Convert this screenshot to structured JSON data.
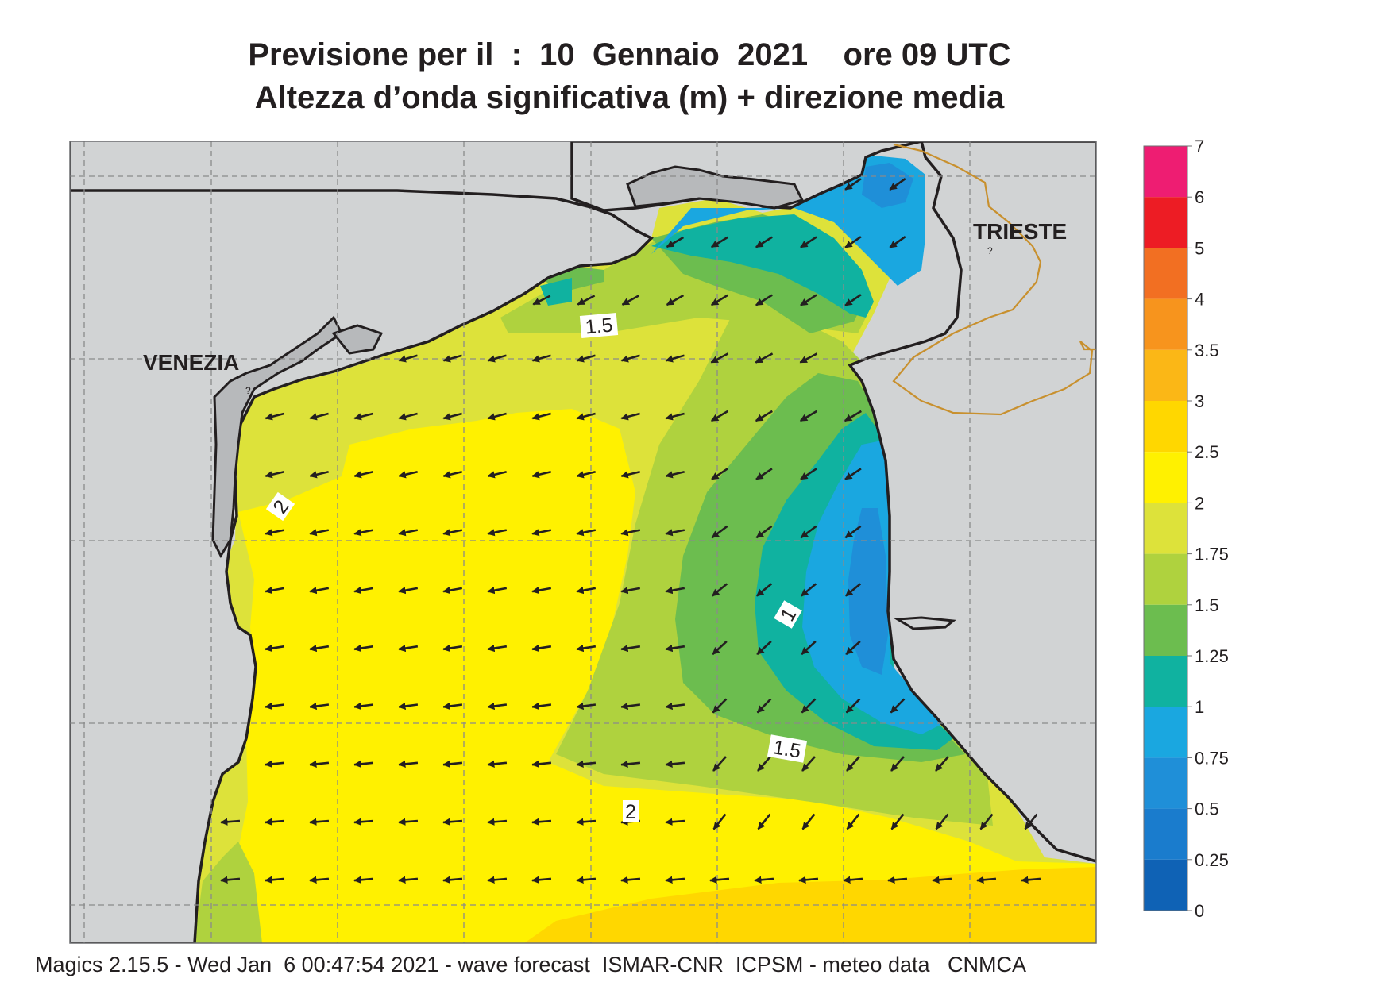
{
  "header": {
    "title_line1": "Previsione per il  :  10  Gennaio  2021    ore 09 UTC",
    "title_line2": "Altezza d’onda significativa (m) + direzione media"
  },
  "map": {
    "cities": [
      {
        "name": "VENEZIA"
      },
      {
        "name": "TRIESTE"
      }
    ],
    "contour_labels": [
      "1.5",
      "2",
      "1",
      "1.5",
      "2"
    ],
    "wave_direction": "towards south-west / west-south-west",
    "colors": {
      "land": "#d1d3d4",
      "lagoon": "#b7b9bb",
      "coast": "#231f20",
      "border": "#c8902e",
      "grid": "#8a8a8a"
    }
  },
  "colorbar": {
    "ticks": [
      "7",
      "6",
      "5",
      "4",
      "3.5",
      "3",
      "2.5",
      "2",
      "1.75",
      "1.5",
      "1.25",
      "1",
      "0.75",
      "0.5",
      "0.25",
      "0"
    ],
    "bands": [
      {
        "from": 6,
        "to": 7,
        "color": "#ee1d72"
      },
      {
        "from": 5,
        "to": 6,
        "color": "#ed1c24"
      },
      {
        "from": 4,
        "to": 5,
        "color": "#f26f22"
      },
      {
        "from": 3.5,
        "to": 4,
        "color": "#f7941d"
      },
      {
        "from": 3,
        "to": 3.5,
        "color": "#fbb716"
      },
      {
        "from": 2.5,
        "to": 3,
        "color": "#ffd700"
      },
      {
        "from": 2,
        "to": 2.5,
        "color": "#fff100"
      },
      {
        "from": 1.75,
        "to": 2,
        "color": "#dde23a"
      },
      {
        "from": 1.5,
        "to": 1.75,
        "color": "#afd23e"
      },
      {
        "from": 1.25,
        "to": 1.5,
        "color": "#6cbd4f"
      },
      {
        "from": 1,
        "to": 1.25,
        "color": "#10b2a0"
      },
      {
        "from": 0.75,
        "to": 1,
        "color": "#1aa7e0"
      },
      {
        "from": 0.5,
        "to": 0.75,
        "color": "#1f8fd8"
      },
      {
        "from": 0.25,
        "to": 0.5,
        "color": "#1a7ccd"
      },
      {
        "from": 0,
        "to": 0.25,
        "color": "#0f62b5"
      }
    ]
  },
  "footer": {
    "text": "Magics 2.15.5 - Wed Jan  6 00:47:54 2021 - wave forecast  ISMAR-CNR  ICPSM - meteo data   CNMCA"
  }
}
